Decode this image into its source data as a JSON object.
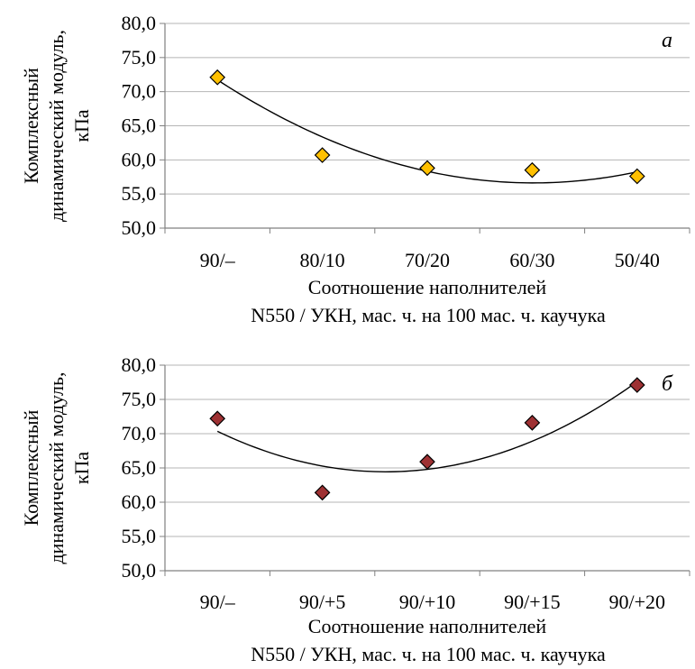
{
  "chart_data": [
    {
      "type": "scatter",
      "panel_label": "а",
      "categories": [
        "90/–",
        "80/10",
        "70/20",
        "60/30",
        "50/40"
      ],
      "series": [
        {
          "values": [
            72.1,
            60.7,
            58.8,
            58.5,
            57.6
          ]
        }
      ],
      "trendline": {
        "type": "polynomial",
        "order": 2,
        "values": [
          71.9,
          63.0,
          58.4,
          56.9,
          58.1
        ]
      },
      "ylabel_lines": [
        "Комплексный",
        "динамический модуль,",
        "кПа"
      ],
      "xlabel_lines": [
        "Соотношение наполнителей",
        "N550 / УКН, мас. ч. на 100 мас. ч. каучука"
      ],
      "ylim": [
        50,
        80
      ],
      "yticks": [
        "50,0",
        "55,0",
        "60,0",
        "65,0",
        "70,0",
        "75,0",
        "80,0"
      ],
      "grid": true,
      "marker_color": "#FFC000"
    },
    {
      "type": "scatter",
      "panel_label": "б",
      "categories": [
        "90/–",
        "90/+5",
        "90/+10",
        "90/+15",
        "90/+20"
      ],
      "series": [
        {
          "values": [
            72.2,
            61.4,
            65.9,
            71.6,
            77.1
          ]
        }
      ],
      "trendline": {
        "type": "polynomial",
        "order": 2,
        "values": [
          70.4,
          65.2,
          64.7,
          69.1,
          77.5
        ]
      },
      "ylabel_lines": [
        "Комплексный",
        "динамический модуль,",
        "кПа"
      ],
      "xlabel_lines": [
        "Соотношение наполнителей",
        "N550 / УКН, мас. ч. на 100 мас. ч. каучука"
      ],
      "ylim": [
        50,
        80
      ],
      "yticks": [
        "50,0",
        "55,0",
        "60,0",
        "65,0",
        "70,0",
        "75,0",
        "80,0"
      ],
      "grid": true,
      "marker_color": "#9E3133"
    }
  ]
}
